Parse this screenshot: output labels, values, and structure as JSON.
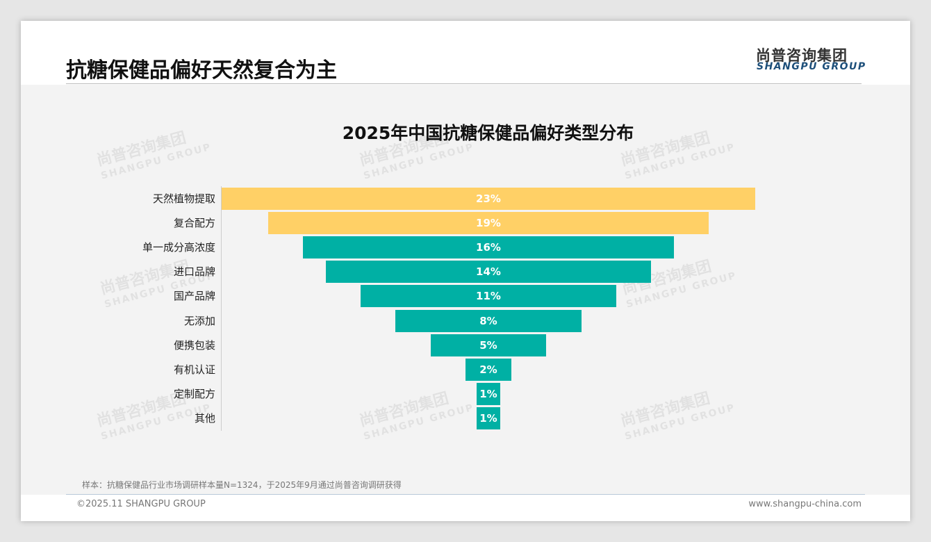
{
  "header": {
    "title": "抗糖保健品偏好天然复合为主",
    "logo_cn": "尚普咨询集团",
    "logo_en": "SHANGPU GROUP"
  },
  "watermark": {
    "cn": "尚普咨询集团",
    "en": "SHANGPU GROUP"
  },
  "chart_data": {
    "type": "bar",
    "orientation": "horizontal-funnel",
    "title": "2025年中国抗糖保健品偏好类型分布",
    "categories": [
      "天然植物提取",
      "复合配方",
      "单一成分高浓度",
      "进口品牌",
      "国产品牌",
      "无添加",
      "便携包装",
      "有机认证",
      "定制配方",
      "其他"
    ],
    "values": [
      23,
      19,
      16,
      14,
      11,
      8,
      5,
      2,
      1,
      1
    ],
    "labels": [
      "23%",
      "19%",
      "16%",
      "14%",
      "11%",
      "8%",
      "5%",
      "2%",
      "1%",
      "1%"
    ],
    "colors": [
      "#FFD066",
      "#FFD066",
      "#00B0A4",
      "#00B0A4",
      "#00B0A4",
      "#00B0A4",
      "#00B0A4",
      "#00B0A4",
      "#00B0A4",
      "#00B0A4"
    ],
    "unit": "%"
  },
  "footer": {
    "note": "样本：抗糖保健品行业市场调研样本量N=1324，于2025年9月通过尚普咨询调研获得",
    "copyright": "©2025.11 SHANGPU GROUP",
    "website": "www.shangpu-china.com"
  }
}
